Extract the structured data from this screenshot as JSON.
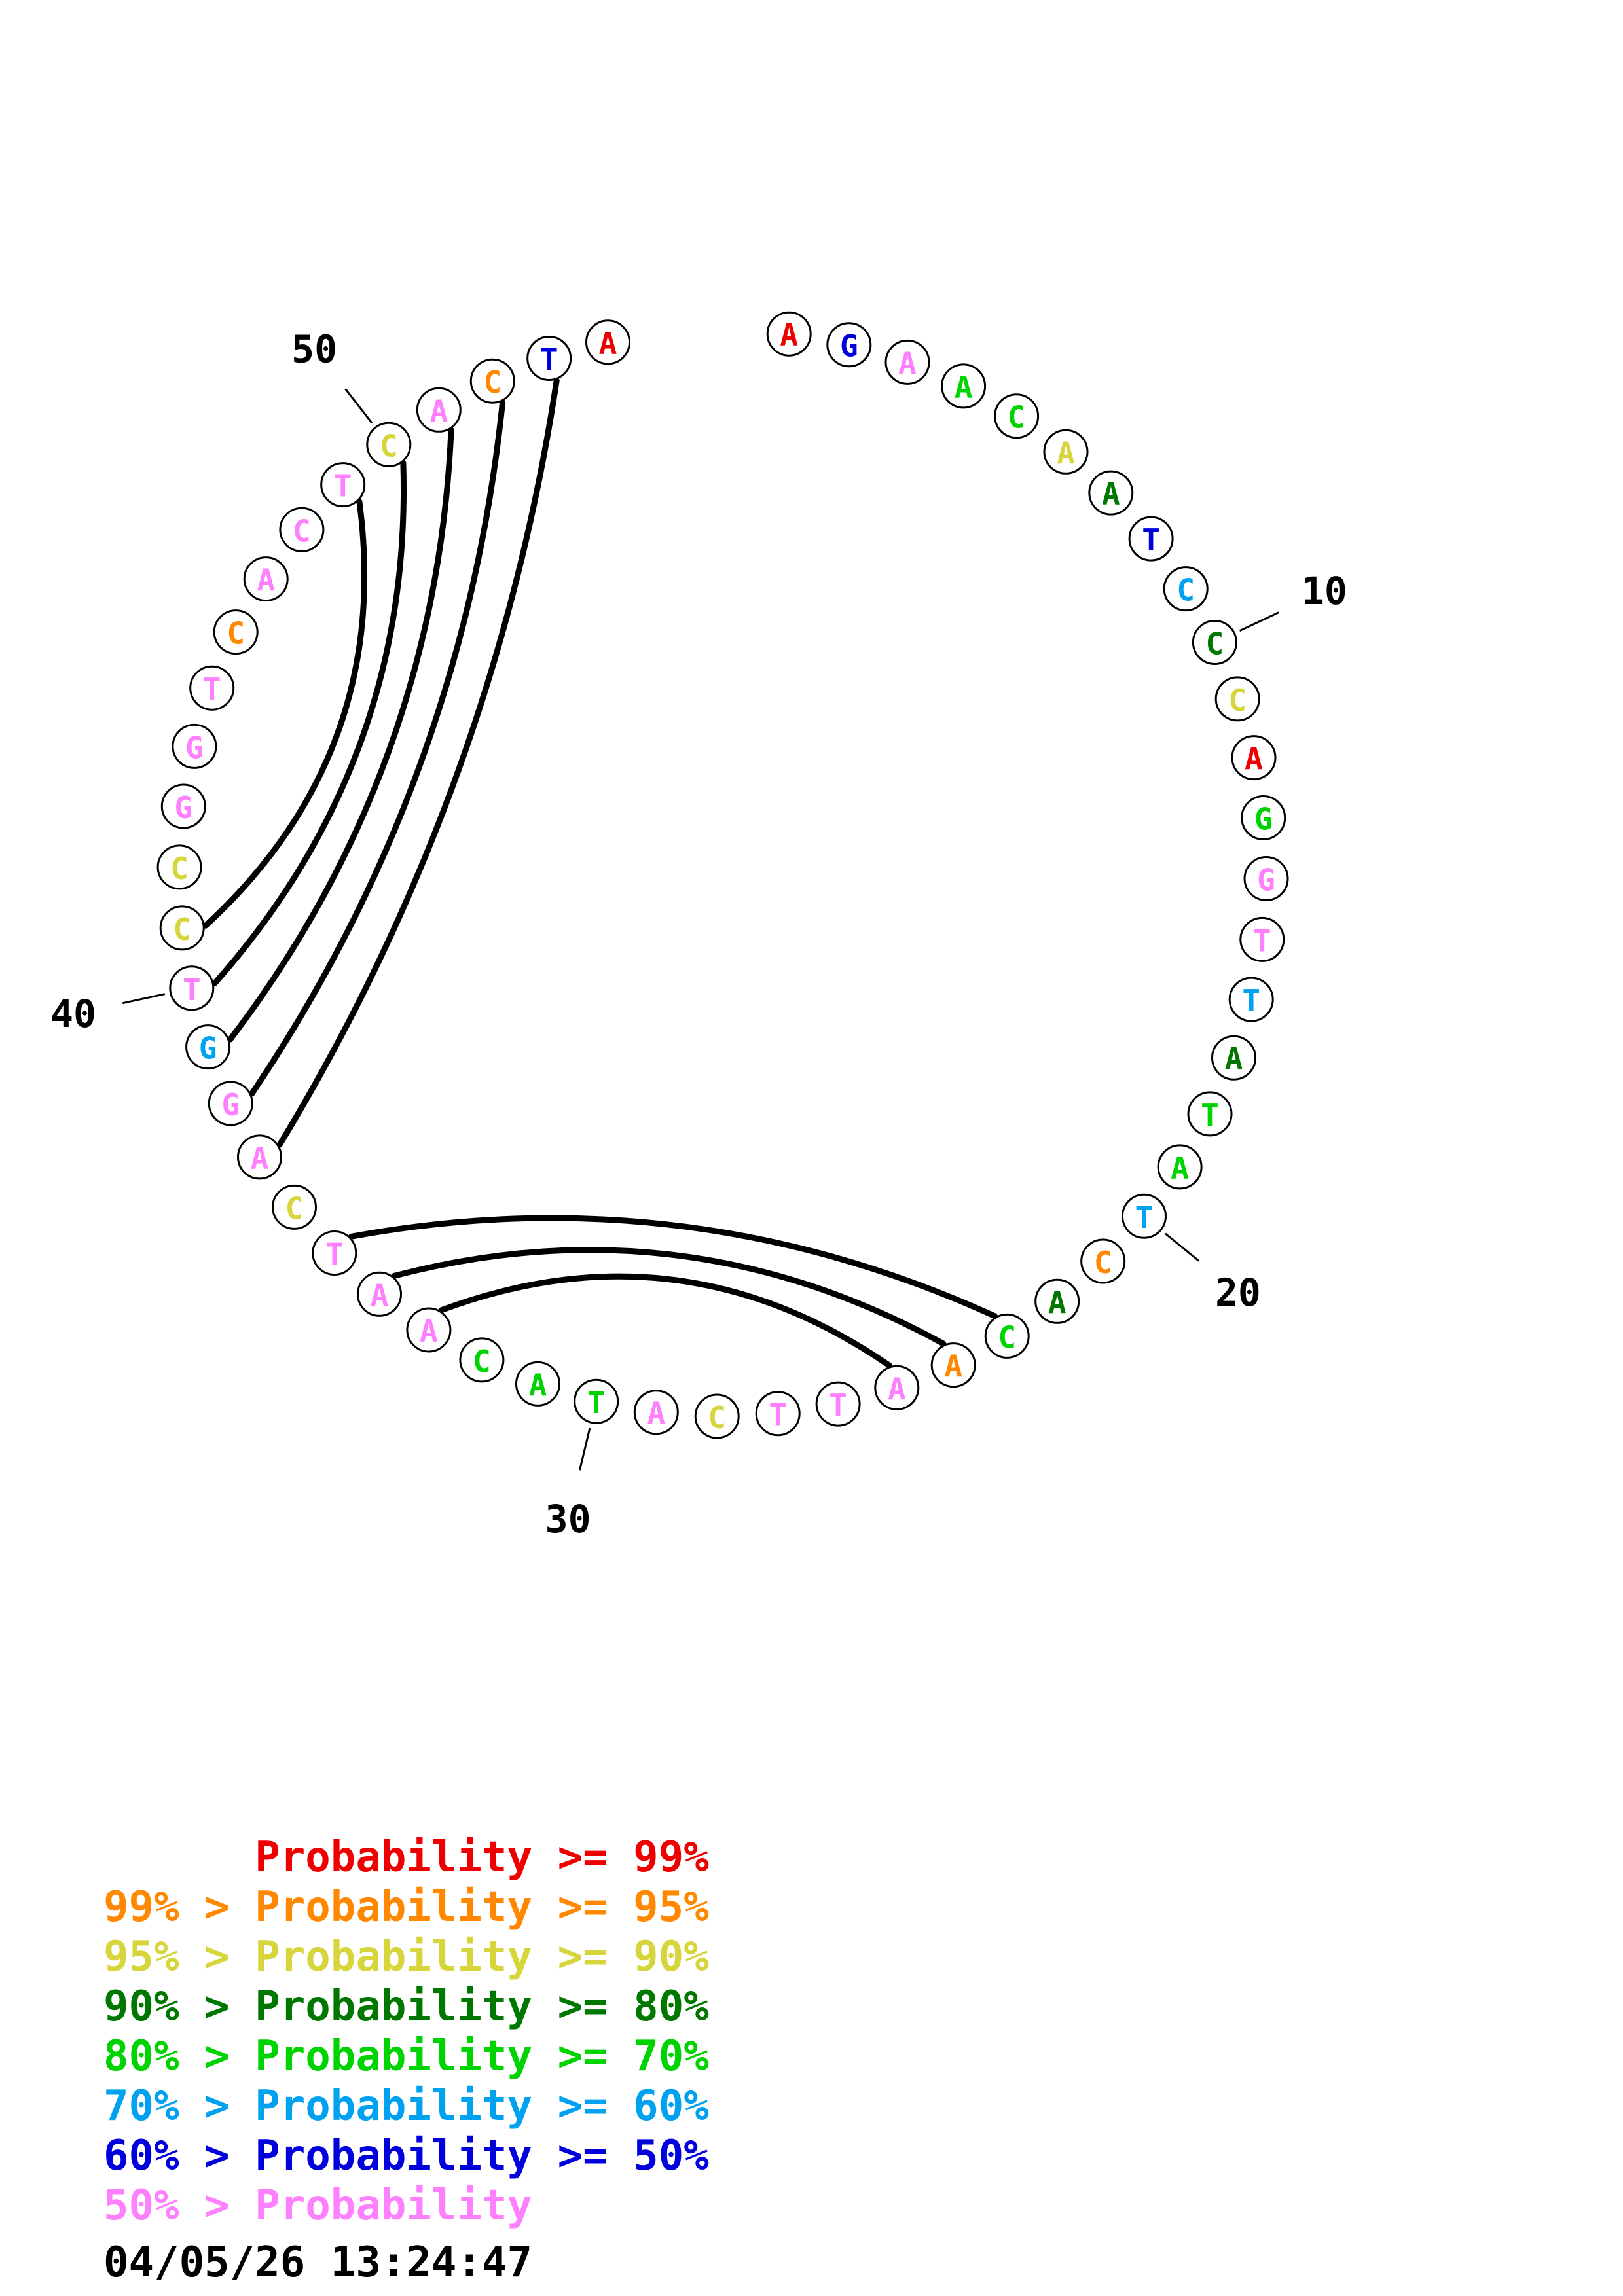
{
  "plot": {
    "bases": [
      {
        "b": "A",
        "p": "p99"
      },
      {
        "b": "G",
        "p": "p50"
      },
      {
        "b": "A",
        "p": "plt50"
      },
      {
        "b": "A",
        "p": "p70"
      },
      {
        "b": "C",
        "p": "p70"
      },
      {
        "b": "A",
        "p": "p90"
      },
      {
        "b": "A",
        "p": "p80"
      },
      {
        "b": "T",
        "p": "p50"
      },
      {
        "b": "C",
        "p": "p60"
      },
      {
        "b": "C",
        "p": "p80"
      },
      {
        "b": "C",
        "p": "p90"
      },
      {
        "b": "A",
        "p": "p99"
      },
      {
        "b": "G",
        "p": "p70"
      },
      {
        "b": "G",
        "p": "plt50"
      },
      {
        "b": "T",
        "p": "plt50"
      },
      {
        "b": "T",
        "p": "p60"
      },
      {
        "b": "A",
        "p": "p80"
      },
      {
        "b": "T",
        "p": "p70"
      },
      {
        "b": "A",
        "p": "p70"
      },
      {
        "b": "T",
        "p": "p60"
      },
      {
        "b": "C",
        "p": "p95"
      },
      {
        "b": "A",
        "p": "p80"
      },
      {
        "b": "C",
        "p": "p70"
      },
      {
        "b": "A",
        "p": "p95"
      },
      {
        "b": "A",
        "p": "plt50"
      },
      {
        "b": "T",
        "p": "plt50"
      },
      {
        "b": "T",
        "p": "plt50"
      },
      {
        "b": "C",
        "p": "p90"
      },
      {
        "b": "A",
        "p": "plt50"
      },
      {
        "b": "T",
        "p": "p70"
      },
      {
        "b": "A",
        "p": "p70"
      },
      {
        "b": "C",
        "p": "p70"
      },
      {
        "b": "A",
        "p": "plt50"
      },
      {
        "b": "A",
        "p": "plt50"
      },
      {
        "b": "T",
        "p": "plt50"
      },
      {
        "b": "C",
        "p": "p90"
      },
      {
        "b": "A",
        "p": "plt50"
      },
      {
        "b": "G",
        "p": "plt50"
      },
      {
        "b": "G",
        "p": "p60"
      },
      {
        "b": "T",
        "p": "plt50"
      },
      {
        "b": "C",
        "p": "p90"
      },
      {
        "b": "C",
        "p": "p90"
      },
      {
        "b": "G",
        "p": "plt50"
      },
      {
        "b": "G",
        "p": "plt50"
      },
      {
        "b": "T",
        "p": "plt50"
      },
      {
        "b": "C",
        "p": "p95"
      },
      {
        "b": "A",
        "p": "plt50"
      },
      {
        "b": "C",
        "p": "plt50"
      },
      {
        "b": "T",
        "p": "plt50"
      },
      {
        "b": "C",
        "p": "p90"
      },
      {
        "b": "A",
        "p": "plt50"
      },
      {
        "b": "C",
        "p": "p95"
      },
      {
        "b": "T",
        "p": "p50"
      },
      {
        "b": "A",
        "p": "p99"
      }
    ],
    "pairs": [
      [
        49,
        41
      ],
      [
        50,
        40
      ],
      [
        51,
        39
      ],
      [
        52,
        38
      ],
      [
        53,
        37
      ],
      [
        35,
        23
      ],
      [
        34,
        24
      ],
      [
        33,
        25
      ]
    ],
    "tick_labels": [
      {
        "label": "10",
        "position": 10
      },
      {
        "label": "20",
        "position": 20
      },
      {
        "label": "30",
        "position": 30
      },
      {
        "label": "40",
        "position": 40
      },
      {
        "label": "50",
        "position": 50
      }
    ]
  },
  "colors": {
    "p99": "#ee0000",
    "p95": "#ff8800",
    "p90": "#d6d63c",
    "p80": "#007700",
    "p70": "#00d400",
    "p60": "#00a2f0",
    "p50": "#0000dd",
    "plt50": "#ff80ff",
    "arc": "#000000",
    "outline": "#000000"
  },
  "legend": {
    "items": [
      {
        "text": "      Probability >= 99%",
        "class": "p99"
      },
      {
        "text": "99% > Probability >= 95%",
        "class": "p95"
      },
      {
        "text": "95% > Probability >= 90%",
        "class": "p90"
      },
      {
        "text": "90% > Probability >= 80%",
        "class": "p80"
      },
      {
        "text": "80% > Probability >= 70%",
        "class": "p70"
      },
      {
        "text": "70% > Probability >= 60%",
        "class": "p60"
      },
      {
        "text": "60% > Probability >= 50%",
        "class": "p50"
      },
      {
        "text": "50% > Probability",
        "class": "plt50"
      }
    ]
  },
  "timestamp": "04/05/26 13:24:47"
}
